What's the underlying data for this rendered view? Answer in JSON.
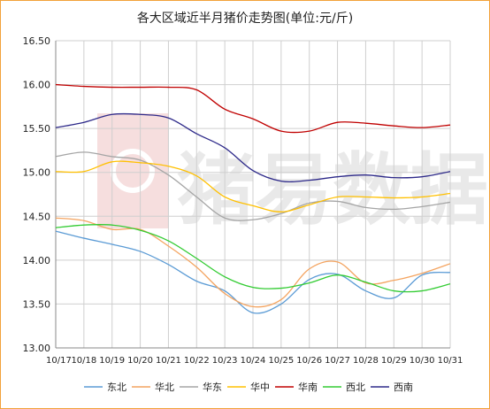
{
  "chart_data": {
    "type": "line",
    "title": "各大区域近半月猪价走势图(单位:元/斤)",
    "categories": [
      "10/17",
      "10/18",
      "10/19",
      "10/20",
      "10/21",
      "10/22",
      "10/23",
      "10/24",
      "10/25",
      "10/26",
      "10/27",
      "10/28",
      "10/29",
      "10/30",
      "10/31"
    ],
    "ylim": [
      13.0,
      16.5
    ],
    "yticks": [
      "13.00",
      "13.50",
      "14.00",
      "14.50",
      "15.00",
      "15.50",
      "16.00",
      "16.50"
    ],
    "grid": true,
    "legend_position": "bottom",
    "watermark": "猪易数据",
    "series": [
      {
        "name": "东北",
        "color": "#5b9bd5",
        "values": [
          14.33,
          14.25,
          14.18,
          14.1,
          13.95,
          13.76,
          13.65,
          13.4,
          13.5,
          13.78,
          13.84,
          13.65,
          13.57,
          13.83,
          13.86
        ]
      },
      {
        "name": "华北",
        "color": "#f4a460",
        "values": [
          14.48,
          14.45,
          14.35,
          14.35,
          14.16,
          13.92,
          13.62,
          13.47,
          13.55,
          13.9,
          13.98,
          13.74,
          13.77,
          13.85,
          13.96
        ]
      },
      {
        "name": "华东",
        "color": "#a5a5a5",
        "values": [
          15.18,
          15.23,
          15.18,
          15.14,
          14.97,
          14.72,
          14.48,
          14.46,
          14.53,
          14.65,
          14.67,
          14.6,
          14.58,
          14.61,
          14.66
        ]
      },
      {
        "name": "华中",
        "color": "#ffc000",
        "values": [
          15.01,
          15.01,
          15.12,
          15.11,
          15.07,
          14.96,
          14.72,
          14.62,
          14.55,
          14.63,
          14.72,
          14.72,
          14.71,
          14.72,
          14.76
        ]
      },
      {
        "name": "华南",
        "color": "#c00000",
        "values": [
          16.0,
          15.98,
          15.97,
          15.97,
          15.97,
          15.94,
          15.72,
          15.61,
          15.47,
          15.47,
          15.57,
          15.56,
          15.53,
          15.51,
          15.54
        ]
      },
      {
        "name": "西北",
        "color": "#33cc33",
        "values": [
          14.37,
          14.4,
          14.4,
          14.34,
          14.22,
          14.02,
          13.81,
          13.69,
          13.68,
          13.74,
          13.83,
          13.75,
          13.65,
          13.65,
          13.73
        ]
      },
      {
        "name": "西南",
        "color": "#2e2a8a",
        "values": [
          15.51,
          15.57,
          15.66,
          15.66,
          15.62,
          15.44,
          15.28,
          15.02,
          14.9,
          14.91,
          14.95,
          14.97,
          14.94,
          14.95,
          15.01
        ]
      }
    ]
  }
}
